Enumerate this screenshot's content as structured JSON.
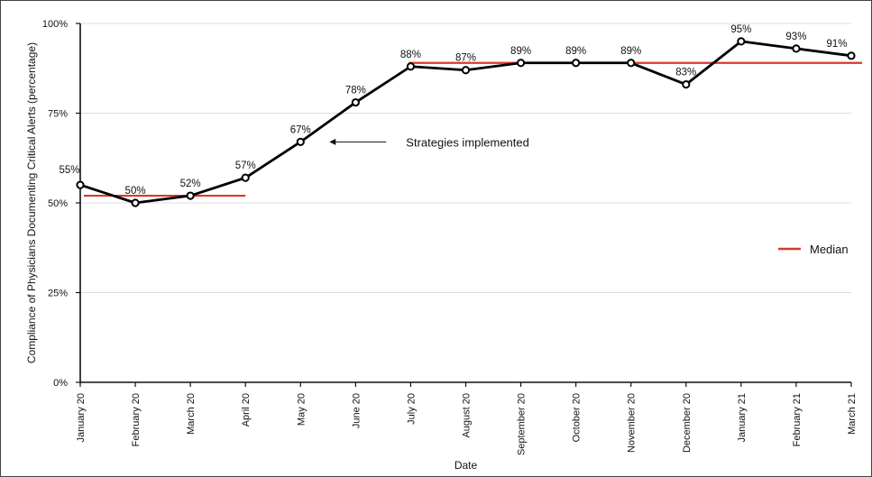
{
  "chart_data": {
    "type": "line",
    "xlabel": "Date",
    "ylabel": "Compliance of Physicians Documenting Critical Alerts (percentage)",
    "categories": [
      "January 20",
      "February 20",
      "March 20",
      "April 20",
      "May 20",
      "June 20",
      "July 20",
      "August 20",
      "September 20",
      "October 20",
      "November 20",
      "December 20",
      "January 21",
      "February 21",
      "March 21"
    ],
    "values": [
      55,
      50,
      52,
      57,
      67,
      78,
      88,
      87,
      89,
      89,
      89,
      83,
      95,
      93,
      91
    ],
    "data_labels": [
      "55%",
      "50%",
      "52%",
      "57%",
      "67%",
      "78%",
      "88%",
      "87%",
      "89%",
      "89%",
      "89%",
      "83%",
      "95%",
      "93%",
      "91%"
    ],
    "ylim": [
      0,
      100
    ],
    "yticks": [
      0,
      25,
      50,
      75,
      100
    ],
    "ytick_labels": [
      "0%",
      "25%",
      "50%",
      "75%",
      "100%"
    ],
    "grid": "horizontal",
    "series_color": "#000000",
    "median": {
      "name": "Median",
      "color": "#d9392b",
      "segments": [
        {
          "from": "January 20",
          "to": "April 20",
          "value": 52
        },
        {
          "from": "July 20",
          "to": "March 21",
          "value": 89
        }
      ]
    },
    "annotation": {
      "text": "Strategies implemented",
      "points_to": "May 20"
    },
    "legend": {
      "label": "Median",
      "placement": "right"
    }
  }
}
